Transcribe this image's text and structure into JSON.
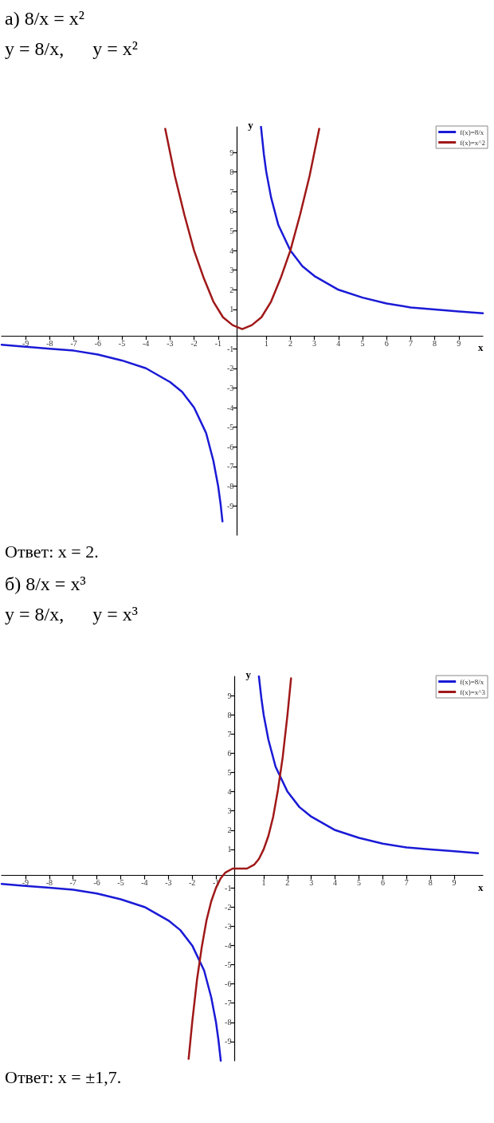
{
  "chart_data": [
    {
      "type": "line",
      "title": "а) 8/x = x²",
      "subtitle": "y = 8/x,      y = x²",
      "annotations": [
        "Ответ: x = 2."
      ],
      "xlabel": "x",
      "ylabel": "y",
      "xlim": [
        -10,
        10
      ],
      "ylim": [
        -10.5,
        10.3
      ],
      "xticks": [
        -9,
        -8,
        -7,
        -6,
        -5,
        -4,
        -3,
        -2,
        -1,
        1,
        2,
        3,
        4,
        5,
        6,
        7,
        8,
        9
      ],
      "yticks": [
        -9,
        -8,
        -7,
        -6,
        -5,
        -4,
        -3,
        -2,
        -1,
        1,
        2,
        3,
        4,
        5,
        6,
        7,
        8,
        9
      ],
      "legend": "top right",
      "marker": "none",
      "series": [
        {
          "name": "f(x)=8/x",
          "color": "#1a1ad6",
          "x": [
            -10,
            -9,
            -8,
            -7,
            -6,
            -5,
            -4,
            -3,
            -2.5,
            -2,
            -1.5,
            -1.2,
            -1,
            -0.9,
            -0.82,
            0,
            0.78,
            0.9,
            1,
            1.2,
            1.5,
            2,
            2.5,
            3,
            4,
            5,
            6,
            7,
            8,
            9,
            10
          ],
          "values": [
            -0.8,
            -0.9,
            -1,
            -1.1,
            -1.3,
            -1.6,
            -2,
            -2.7,
            -3.2,
            -4,
            -5.3,
            -6.7,
            -8,
            -8.9,
            -9.8,
            null,
            10.3,
            8.9,
            8,
            6.7,
            5.3,
            4,
            3.2,
            2.7,
            2,
            1.6,
            1.3,
            1.1,
            1,
            0.9,
            0.8
          ]
        },
        {
          "name": "f(x)=x^2",
          "color": "#a01818",
          "x": [
            -3.2,
            -2.8,
            -2.4,
            -2,
            -1.6,
            -1.2,
            -0.8,
            -0.4,
            0,
            0.4,
            0.8,
            1.2,
            1.6,
            2,
            2.4,
            2.8,
            3.2
          ],
          "values": [
            10.2,
            7.8,
            5.8,
            4,
            2.6,
            1.4,
            0.6,
            0.2,
            0,
            0.2,
            0.6,
            1.4,
            2.6,
            4,
            5.8,
            7.8,
            10.2
          ]
        }
      ]
    },
    {
      "type": "line",
      "title": "б) 8/x = x³",
      "subtitle": "y = 8/x,      y = x³",
      "annotations": [
        "Ответ: x = ±1,7."
      ],
      "xlabel": "x",
      "ylabel": "y",
      "xlim": [
        -10,
        10.2
      ],
      "ylim": [
        -10,
        10
      ],
      "xticks": [
        -9,
        -8,
        -7,
        -6,
        -5,
        -4,
        -3,
        -2,
        -1,
        1,
        2,
        3,
        4,
        5,
        6,
        7,
        8,
        9
      ],
      "yticks": [
        -9,
        -8,
        -7,
        -6,
        -5,
        -4,
        -3,
        -2,
        -1,
        1,
        2,
        3,
        4,
        5,
        6,
        7,
        8,
        9
      ],
      "legend": "top right",
      "marker": "none",
      "series": [
        {
          "name": "f(x)=8/x",
          "color": "#1a1ad6",
          "x": [
            -10,
            -9,
            -8,
            -7,
            -6,
            -5,
            -4,
            -3,
            -2.5,
            -2,
            -1.5,
            -1.2,
            -1,
            -0.9,
            -0.8,
            0,
            0.8,
            0.9,
            1,
            1.2,
            1.5,
            2,
            2.5,
            3,
            4,
            5,
            6,
            7,
            8,
            9,
            10
          ],
          "values": [
            -0.8,
            -0.9,
            -1,
            -1.1,
            -1.3,
            -1.6,
            -2,
            -2.7,
            -3.2,
            -4,
            -5.3,
            -6.7,
            -8,
            -8.9,
            -10,
            null,
            10,
            8.9,
            8,
            6.7,
            5.3,
            4,
            3.2,
            2.7,
            2,
            1.6,
            1.3,
            1.1,
            1,
            0.9,
            0.8
          ]
        },
        {
          "name": "f(x)=x^3",
          "color": "#a01818",
          "x": [
            -2.15,
            -2,
            -1.8,
            -1.6,
            -1.4,
            -1.2,
            -1,
            -0.8,
            -0.6,
            -0.3,
            0,
            0.3,
            0.6,
            0.8,
            1,
            1.2,
            1.4,
            1.6,
            1.8,
            2,
            2.15
          ],
          "values": [
            -9.9,
            -8,
            -5.8,
            -4.1,
            -2.7,
            -1.7,
            -1,
            -0.5,
            -0.2,
            0,
            0,
            0,
            0.2,
            0.5,
            1,
            1.7,
            2.7,
            4.1,
            5.8,
            8,
            9.9
          ]
        }
      ]
    }
  ]
}
